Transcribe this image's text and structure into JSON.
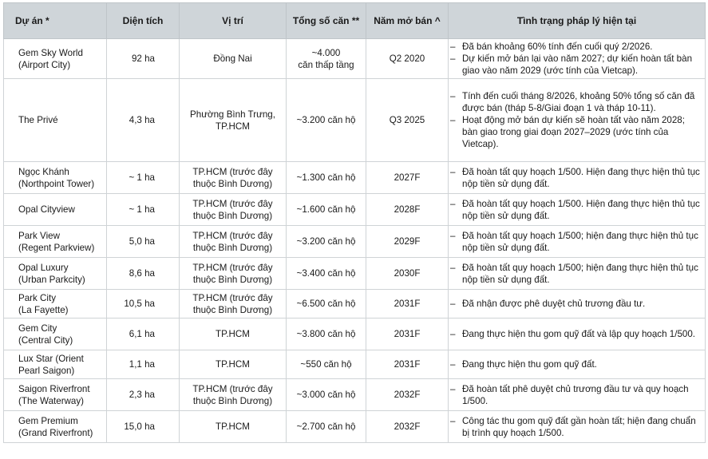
{
  "headers": [
    "Dự án *",
    "Diện tích",
    "Vị trí",
    "Tổng số căn **",
    "Năm mở bán ^",
    "Tình trạng pháp lý hiện tại"
  ],
  "rows": [
    {
      "project": [
        "Gem Sky World",
        "(Airport City)"
      ],
      "area": "92 ha",
      "location": [
        "Đồng Nai"
      ],
      "units": [
        "~4.000",
        "căn thấp tầng"
      ],
      "year": "Q2 2020",
      "status": [
        "Đã bán khoảng 60% tính đến cuối quý 2/2026.",
        "Dự kiến mở bán lại vào năm 2027; dự kiến hoàn tất bàn giao vào năm 2029 (ước tính của Vietcap)."
      ]
    },
    {
      "project": [
        "The Privé"
      ],
      "area": "4,3 ha",
      "location": [
        "Phường Bình Trưng,",
        "TP.HCM"
      ],
      "units": [
        "~3.200 căn hộ"
      ],
      "year": "Q3 2025",
      "status": [
        "Tính đến cuối tháng 8/2026, khoảng 50% tổng số căn đã được bán (tháp 5-8/Giai đoạn 1 và tháp 10-11).",
        "Hoạt động mở bán dự kiến sẽ hoàn tất vào năm 2028; bàn giao trong giai đoạn 2027–2029 (ước tính của Vietcap)."
      ]
    },
    {
      "project": [
        "Ngọc Khánh",
        "(Northpoint Tower)"
      ],
      "area": "~ 1 ha",
      "location": [
        "TP.HCM (trước đây",
        "thuộc Bình Dương)"
      ],
      "units": [
        "~1.300 căn hộ"
      ],
      "year": "2027F",
      "status": [
        "Đã hoàn tất quy hoạch 1/500. Hiện đang thực hiện thủ tục nộp tiền sử dụng đất."
      ]
    },
    {
      "project": [
        "Opal Cityview"
      ],
      "area": "~ 1 ha",
      "location": [
        "TP.HCM (trước đây",
        "thuộc Bình Dương)"
      ],
      "units": [
        "~1.600 căn hộ"
      ],
      "year": "2028F",
      "status": [
        "Đã hoàn tất quy hoạch 1/500. Hiện đang thực hiện thủ tục nộp tiền sử dụng đất."
      ]
    },
    {
      "project": [
        "Park View",
        "(Regent Parkview)"
      ],
      "area": "5,0 ha",
      "location": [
        "TP.HCM (trước đây",
        "thuộc Bình Dương)"
      ],
      "units": [
        "~3.200 căn hộ"
      ],
      "year": "2029F",
      "status": [
        "Đã hoàn tất quy hoạch 1/500; hiện đang thực hiện thủ tục nộp tiền sử dụng đất."
      ]
    },
    {
      "project": [
        "Opal Luxury",
        "(Urban Parkcity)"
      ],
      "area": "8,6 ha",
      "location": [
        "TP.HCM (trước đây",
        "thuộc Bình Dương)"
      ],
      "units": [
        "~3.400 căn hộ"
      ],
      "year": "2030F",
      "status": [
        "Đã hoàn tất quy hoạch 1/500; hiện đang thực hiện thủ tục nộp tiền sử dụng đất."
      ]
    },
    {
      "project": [
        "Park City",
        "(La Fayette)"
      ],
      "area": "10,5 ha",
      "location": [
        "TP.HCM (trước đây",
        "thuộc Bình Dương)"
      ],
      "units": [
        "~6.500 căn hộ"
      ],
      "year": "2031F",
      "status": [
        "Đã nhận được phê duyệt chủ trương đầu tư."
      ]
    },
    {
      "project": [
        "Gem City",
        "(Central City)"
      ],
      "area": "6,1 ha",
      "location": [
        "TP.HCM"
      ],
      "units": [
        "~3.800 căn hộ"
      ],
      "year": "2031F",
      "status": [
        "Đang thực hiện thu gom quỹ đất và lập quy hoạch 1/500."
      ]
    },
    {
      "project": [
        "Lux Star (Orient",
        "Pearl Saigon)"
      ],
      "area": "1,1 ha",
      "location": [
        "TP.HCM"
      ],
      "units": [
        "~550 căn hộ"
      ],
      "year": "2031F",
      "status": [
        "Đang thực hiện thu gom quỹ đất."
      ]
    },
    {
      "project": [
        "Saigon Riverfront",
        "(The Waterway)"
      ],
      "area": "2,3 ha",
      "location": [
        "TP.HCM (trước đây",
        "thuộc Bình Dương)"
      ],
      "units": [
        "~3.000 căn hộ"
      ],
      "year": "2032F",
      "status": [
        "Đã hoàn tất phê duyệt chủ trương đầu tư và quy hoạch 1/500."
      ]
    },
    {
      "project": [
        "Gem Premium",
        "(Grand Riverfront)"
      ],
      "area": "15,0 ha",
      "location": [
        "TP.HCM"
      ],
      "units": [
        "~2.700 căn hộ"
      ],
      "year": "2032F",
      "status": [
        "Công tác thu gom quỹ đất gần hoàn tất; hiện đang chuẩn bị trình quy hoạch 1/500."
      ]
    }
  ]
}
